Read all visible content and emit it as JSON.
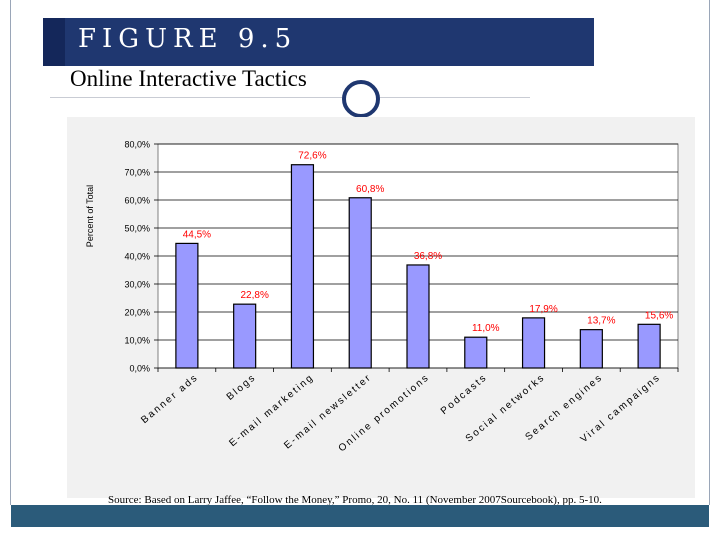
{
  "header": {
    "figure_label": "FIGURE 9.5",
    "title": "Online Interactive Tactics"
  },
  "colors": {
    "band": "#1f3770",
    "bar_fill": "#9999ff",
    "bar_stroke": "#000000",
    "label_color": "#ff0000",
    "plot_bg": "#ffffff",
    "bottom_bar": "#2b5b7a"
  },
  "chart_data": {
    "type": "bar",
    "title": "",
    "xlabel": "",
    "ylabel": "Percent of Total",
    "ylim": [
      0,
      80
    ],
    "yticks": [
      0,
      10,
      20,
      30,
      40,
      50,
      60,
      70,
      80
    ],
    "ytick_labels": [
      "0,0%",
      "10,0%",
      "20,0%",
      "30,0%",
      "40,0%",
      "50,0%",
      "60,0%",
      "70,0%",
      "80,0%"
    ],
    "categories": [
      "Banner ads",
      "Blogs",
      "E-mail marketing",
      "E-mail newsletter",
      "Online promotions",
      "Podcasts",
      "Social networks",
      "Search engines",
      "Viral campaigns"
    ],
    "values": [
      44.5,
      22.8,
      72.6,
      60.8,
      36.8,
      11.0,
      17.9,
      13.7,
      15.6
    ],
    "data_labels": [
      "44,5%",
      "22,8%",
      "72,6%",
      "60,8%",
      "36,8%",
      "11,0%",
      "17,9%",
      "13,7%",
      "15,6%"
    ],
    "grid": true,
    "legend": "none"
  },
  "source": "Source: Based on Larry Jaffee, “Follow the Money,” Promo, 20, No. 11 (November 2007Sourcebook), pp. 5-10."
}
